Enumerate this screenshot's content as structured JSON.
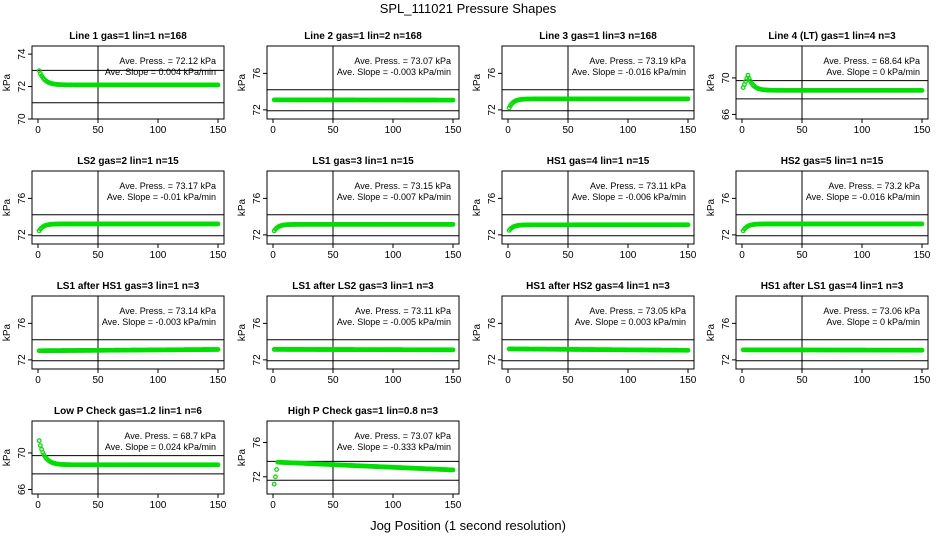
{
  "figure": {
    "title": "SPL_111021  Pressure Shapes",
    "xlabel": "Jog Position (1 second resolution)"
  },
  "colors": {
    "points": "#00dd00",
    "frame": "#000000",
    "background": "#ffffff"
  },
  "chart_data": [
    {
      "type": "scatter",
      "title": "Line 1 gas=1 lin=1 n=168",
      "ylabel": "kPa",
      "xlim": [
        0,
        150
      ],
      "ylim": [
        70,
        74.5
      ],
      "xticks": [
        0,
        50,
        100,
        150
      ],
      "yticks": [
        70,
        72,
        74
      ],
      "hlines": [
        71.0,
        73.0
      ],
      "vline": 50,
      "shape": "decay-down",
      "y_start": 73.2,
      "y_end": 72.1,
      "n_points": 150,
      "annotation": [
        "Ave. Press. = 72.12 kPa",
        "Ave. Slope = 0.004 kPa/min"
      ]
    },
    {
      "type": "scatter",
      "title": "Line 2 gas=1 lin=2 n=168",
      "ylabel": "kPa",
      "xlim": [
        0,
        150
      ],
      "ylim": [
        71,
        79
      ],
      "xticks": [
        0,
        50,
        100,
        150
      ],
      "yticks": [
        72,
        76
      ],
      "hlines": [
        74.2,
        71.9
      ],
      "vline": 50,
      "shape": "flat",
      "y_start": 73.1,
      "y_end": 73.07,
      "n_points": 150,
      "annotation": [
        "Ave. Press. = 73.07 kPa",
        "Ave. Slope = -0.003 kPa/min"
      ]
    },
    {
      "type": "scatter",
      "title": "Line 3 gas=1 lin=3 n=168",
      "ylabel": "kPa",
      "xlim": [
        0,
        150
      ],
      "ylim": [
        71,
        79
      ],
      "xticks": [
        0,
        50,
        100,
        150
      ],
      "yticks": [
        72,
        76
      ],
      "hlines": [
        74.2,
        71.9
      ],
      "vline": 50,
      "shape": "rise",
      "y_start": 71.9,
      "y_end": 73.2,
      "n_points": 150,
      "annotation": [
        "Ave. Press. = 73.19 kPa",
        "Ave. Slope = -0.016 kPa/min"
      ]
    },
    {
      "type": "scatter",
      "title": "Line 4 (LT) gas=1 lin=4 n=3",
      "ylabel": "kPa",
      "xlim": [
        0,
        150
      ],
      "ylim": [
        65.5,
        73.5
      ],
      "xticks": [
        0,
        50,
        100,
        150
      ],
      "yticks": [
        66,
        70
      ],
      "hlines": [
        69.7,
        67.7
      ],
      "vline": 50,
      "shape": "spike",
      "y_start": 68.6,
      "y_end": 68.64,
      "y_peak": 70.3,
      "n_points": 150,
      "annotation": [
        "Ave. Press. = 68.64 kPa",
        "Ave. Slope = 0 kPa/min"
      ]
    },
    {
      "type": "scatter",
      "title": "LS2 gas=2 lin=1 n=15",
      "ylabel": "kPa",
      "xlim": [
        0,
        150
      ],
      "ylim": [
        71,
        79
      ],
      "xticks": [
        0,
        50,
        100,
        150
      ],
      "yticks": [
        72,
        76
      ],
      "hlines": [
        74.2,
        71.9
      ],
      "vline": 50,
      "shape": "rise",
      "y_start": 72.2,
      "y_end": 73.2,
      "n_points": 150,
      "annotation": [
        "Ave. Press. = 73.17 kPa",
        "Ave. Slope = -0.01 kPa/min"
      ]
    },
    {
      "type": "scatter",
      "title": "LS1 gas=3 lin=1 n=15",
      "ylabel": "kPa",
      "xlim": [
        0,
        150
      ],
      "ylim": [
        71,
        79
      ],
      "xticks": [
        0,
        50,
        100,
        150
      ],
      "yticks": [
        72,
        76
      ],
      "hlines": [
        74.2,
        71.9
      ],
      "vline": 50,
      "shape": "rise",
      "y_start": 72.2,
      "y_end": 73.15,
      "n_points": 150,
      "annotation": [
        "Ave. Press. = 73.15 kPa",
        "Ave. Slope = -0.007 kPa/min"
      ]
    },
    {
      "type": "scatter",
      "title": "HS1 gas=4 lin=1 n=15",
      "ylabel": "kPa",
      "xlim": [
        0,
        150
      ],
      "ylim": [
        71,
        79
      ],
      "xticks": [
        0,
        50,
        100,
        150
      ],
      "yticks": [
        72,
        76
      ],
      "hlines": [
        74.2,
        71.9
      ],
      "vline": 50,
      "shape": "rise",
      "y_start": 72.3,
      "y_end": 73.1,
      "n_points": 150,
      "annotation": [
        "Ave. Press. = 73.11 kPa",
        "Ave. Slope = -0.006 kPa/min"
      ]
    },
    {
      "type": "scatter",
      "title": "HS2 gas=5 lin=1 n=15",
      "ylabel": "kPa",
      "xlim": [
        0,
        150
      ],
      "ylim": [
        71,
        79
      ],
      "xticks": [
        0,
        50,
        100,
        150
      ],
      "yticks": [
        72,
        76
      ],
      "hlines": [
        74.2,
        71.9
      ],
      "vline": 50,
      "shape": "rise",
      "y_start": 72.2,
      "y_end": 73.2,
      "n_points": 150,
      "annotation": [
        "Ave. Press. = 73.2 kPa",
        "Ave. Slope = -0.016 kPa/min"
      ]
    },
    {
      "type": "scatter",
      "title": "LS1 after HS1 gas=3 lin=1 n=3",
      "ylabel": "kPa",
      "xlim": [
        0,
        150
      ],
      "ylim": [
        71,
        79
      ],
      "xticks": [
        0,
        50,
        100,
        150
      ],
      "yticks": [
        72,
        76
      ],
      "hlines": [
        74.2,
        71.9
      ],
      "vline": 50,
      "shape": "flat",
      "y_start": 73.0,
      "y_end": 73.14,
      "n_points": 150,
      "annotation": [
        "Ave. Press. = 73.14 kPa",
        "Ave. Slope = -0.003 kPa/min"
      ]
    },
    {
      "type": "scatter",
      "title": "LS1 after LS2 gas=3 lin=1 n=3",
      "ylabel": "kPa",
      "xlim": [
        0,
        150
      ],
      "ylim": [
        71,
        79
      ],
      "xticks": [
        0,
        50,
        100,
        150
      ],
      "yticks": [
        72,
        76
      ],
      "hlines": [
        74.2,
        71.9
      ],
      "vline": 50,
      "shape": "flat",
      "y_start": 73.15,
      "y_end": 73.1,
      "n_points": 150,
      "annotation": [
        "Ave. Press. = 73.11 kPa",
        "Ave. Slope = -0.005 kPa/min"
      ]
    },
    {
      "type": "scatter",
      "title": "HS1 after HS2 gas=4 lin=1 n=3",
      "ylabel": "kPa",
      "xlim": [
        0,
        150
      ],
      "ylim": [
        71,
        79
      ],
      "xticks": [
        0,
        50,
        100,
        150
      ],
      "yticks": [
        72,
        76
      ],
      "hlines": [
        74.2,
        71.9
      ],
      "vline": 50,
      "shape": "flat",
      "y_start": 73.2,
      "y_end": 73.05,
      "n_points": 150,
      "annotation": [
        "Ave. Press. = 73.05 kPa",
        "Ave. Slope = 0.003 kPa/min"
      ]
    },
    {
      "type": "scatter",
      "title": "HS1 after LS1 gas=4 lin=1 n=3",
      "ylabel": "kPa",
      "xlim": [
        0,
        150
      ],
      "ylim": [
        71,
        79
      ],
      "xticks": [
        0,
        50,
        100,
        150
      ],
      "yticks": [
        72,
        76
      ],
      "hlines": [
        74.2,
        71.9
      ],
      "vline": 50,
      "shape": "flat",
      "y_start": 73.1,
      "y_end": 73.06,
      "n_points": 150,
      "annotation": [
        "Ave. Press. = 73.06 kPa",
        "Ave. Slope = 0 kPa/min"
      ]
    },
    {
      "type": "scatter",
      "title": "Low P Check gas=1.2 lin=1 n=6",
      "ylabel": "kPa",
      "xlim": [
        0,
        150
      ],
      "ylim": [
        65.5,
        73.5
      ],
      "xticks": [
        0,
        50,
        100,
        150
      ],
      "yticks": [
        66,
        70
      ],
      "hlines": [
        69.7,
        67.7
      ],
      "vline": 50,
      "shape": "decay-down",
      "y_start": 72.0,
      "y_end": 68.7,
      "n_points": 150,
      "annotation": [
        "Ave. Press. = 68.7 kPa",
        "Ave. Slope = 0.024 kPa/min"
      ]
    },
    {
      "type": "scatter",
      "title": "High P Check gas=1 lin=0.8 n=3",
      "ylabel": "kPa",
      "xlim": [
        0,
        150
      ],
      "ylim": [
        70,
        78.5
      ],
      "xticks": [
        0,
        50,
        100,
        150
      ],
      "yticks": [
        72,
        76
      ],
      "hlines": [
        73.8,
        71.6
      ],
      "vline": 50,
      "shape": "high-check",
      "y_start": 70.3,
      "y_peak": 73.7,
      "y_end": 72.8,
      "n_points": 150,
      "annotation": [
        "Ave. Press. = 73.07 kPa",
        "Ave. Slope = -0.333 kPa/min"
      ]
    }
  ]
}
